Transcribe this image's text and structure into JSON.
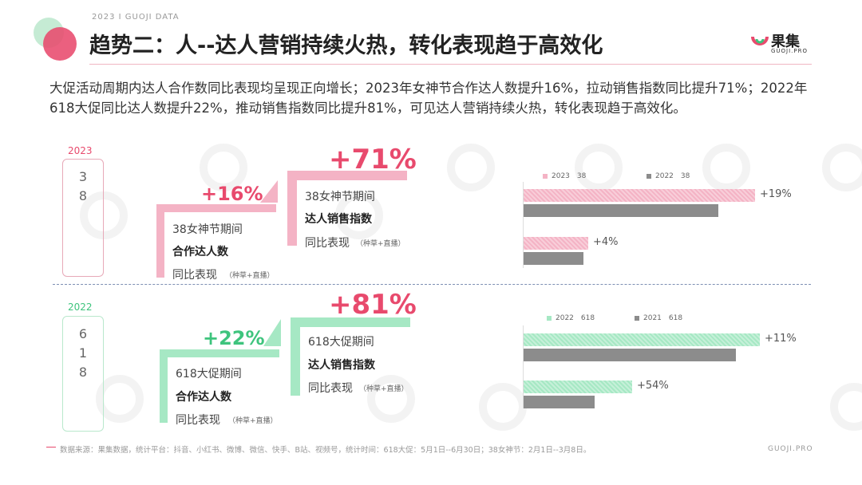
{
  "header": {
    "tag": "2023 I GUOJI DATA",
    "title": "趋势二：人--达人营销持续火热，转化表现趋于高效化",
    "logo_text": "果集",
    "logo_sub": "GUOJI.PRO"
  },
  "intro": "大促活动周期内达人合作数同比表现均呈现正向增长；2023年女神节合作达人数提升16%，拉动销售指数同比提升71%；2022年618大促同比达人数提升22%，推动销售指数同比提升81%，可见达人营销持续火热，转化表现趋于高效化。",
  "colors": {
    "pink": "#f4b3c5",
    "pink_text": "#e84a6d",
    "green": "#a6e8c4",
    "green_text": "#3ec47d",
    "gray": "#8c8c8c"
  },
  "sections": [
    {
      "year": "2023",
      "event_chars": [
        "3",
        "8"
      ],
      "step1": {
        "pct": "+16%",
        "line1": "38女神节期间",
        "line2": "合作达人数",
        "line3": "同比表现",
        "note": "（种草+直播）"
      },
      "step2": {
        "pct": "+71%",
        "line1": "38女神节期间",
        "line2": "达人销售指数",
        "line3": "同比表现",
        "note": "（种草+直播）"
      },
      "legend": [
        {
          "label": "2023　38"
        },
        {
          "label": "2022　38"
        }
      ]
    },
    {
      "year": "2022",
      "event_chars": [
        "6",
        "1",
        "8"
      ],
      "step1": {
        "pct": "+22%",
        "line1": "618大促期间",
        "line2": "合作达人数",
        "line3": "同比表现",
        "note": "（种草+直播）"
      },
      "step2": {
        "pct": "+81%",
        "line1": "618大促期间",
        "line2": "达人销售指数",
        "line3": "同比表现",
        "note": "（种草+直播）"
      },
      "legend": [
        {
          "label": "2022　618"
        },
        {
          "label": "2021　618"
        }
      ]
    }
  ],
  "chart_data": [
    {
      "type": "bar",
      "orientation": "horizontal",
      "series": [
        {
          "name": "2023　38",
          "values": [
            1.0,
            0.28
          ]
        },
        {
          "name": "2022　38",
          "values": [
            0.84,
            0.26
          ]
        }
      ],
      "bar_labels": [
        "+19%",
        "+4%"
      ]
    },
    {
      "type": "bar",
      "orientation": "horizontal",
      "series": [
        {
          "name": "2022　618",
          "values": [
            1.0,
            0.46
          ]
        },
        {
          "name": "2021　618",
          "values": [
            0.9,
            0.3
          ]
        }
      ],
      "bar_labels": [
        "+11%",
        "+54%"
      ]
    }
  ],
  "footer": {
    "source": "数据来源：果集数据，统计平台：抖音、小红书、微博、微信、快手、B站、视频号，统计时间：618大促：5月1日--6月30日；38女神节：2月1日--3月8日。",
    "site": "GUOJI.PRO"
  }
}
